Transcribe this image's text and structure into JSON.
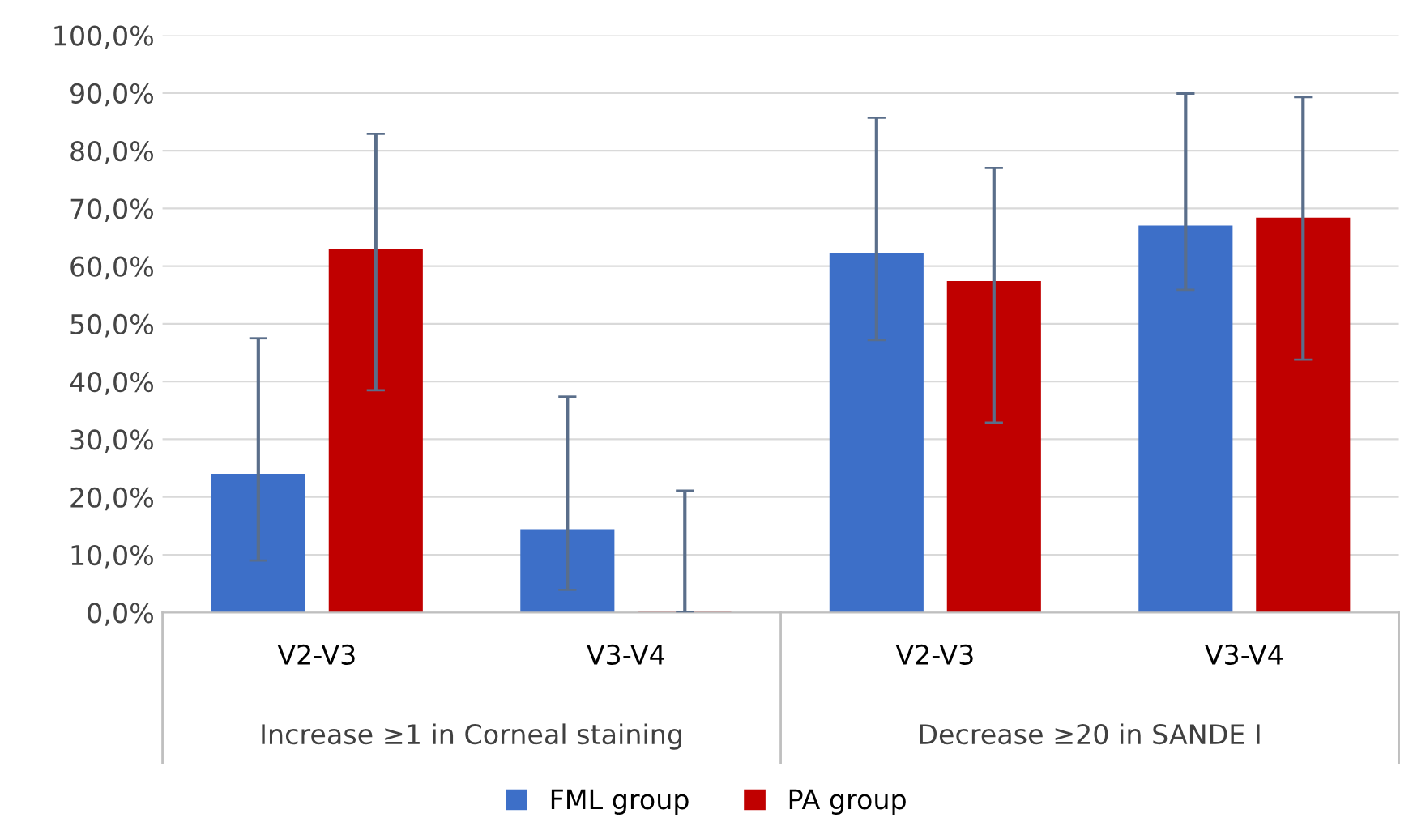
{
  "chart_data": {
    "type": "bar",
    "categories": [
      "V2-V3",
      "V3-V4",
      "V2-V3",
      "V3-V4"
    ],
    "annotations": [
      "Increase ≥1 in Corneal staining",
      "Decrease ≥20 in SANDE I"
    ],
    "series": [
      {
        "name": "FML group",
        "color": "#3d6fc8",
        "values": [
          23.9,
          14.3,
          62.1,
          66.9
        ],
        "errors": [
          [
            9.0,
            47.5
          ],
          [
            3.9,
            37.4
          ],
          [
            47.2,
            85.7
          ],
          [
            55.9,
            89.9
          ]
        ]
      },
      {
        "name": "PA group",
        "color": "#c00000",
        "values": [
          62.9,
          0,
          57.3,
          68.3
        ],
        "errors": [
          [
            38.5,
            82.9
          ],
          [
            0,
            21.1
          ],
          [
            32.9,
            77.0
          ],
          [
            43.8,
            89.3
          ]
        ]
      }
    ],
    "ylim": [
      0,
      100
    ],
    "yticks": [
      {
        "value": 0,
        "label": "0,0%"
      },
      {
        "value": 10,
        "label": "10,0%"
      },
      {
        "value": 20,
        "label": "20,0%"
      },
      {
        "value": 30,
        "label": "30,0%"
      },
      {
        "value": 40,
        "label": "40,0%"
      },
      {
        "value": 50,
        "label": "50,0%"
      },
      {
        "value": 60,
        "label": "60,0%"
      },
      {
        "value": 70,
        "label": "70,0%"
      },
      {
        "value": 80,
        "label": "80,0%"
      },
      {
        "value": 90,
        "label": "90,0%"
      },
      {
        "value": 100,
        "label": "100,0%"
      }
    ],
    "grid": "y",
    "legend": "bottom"
  }
}
